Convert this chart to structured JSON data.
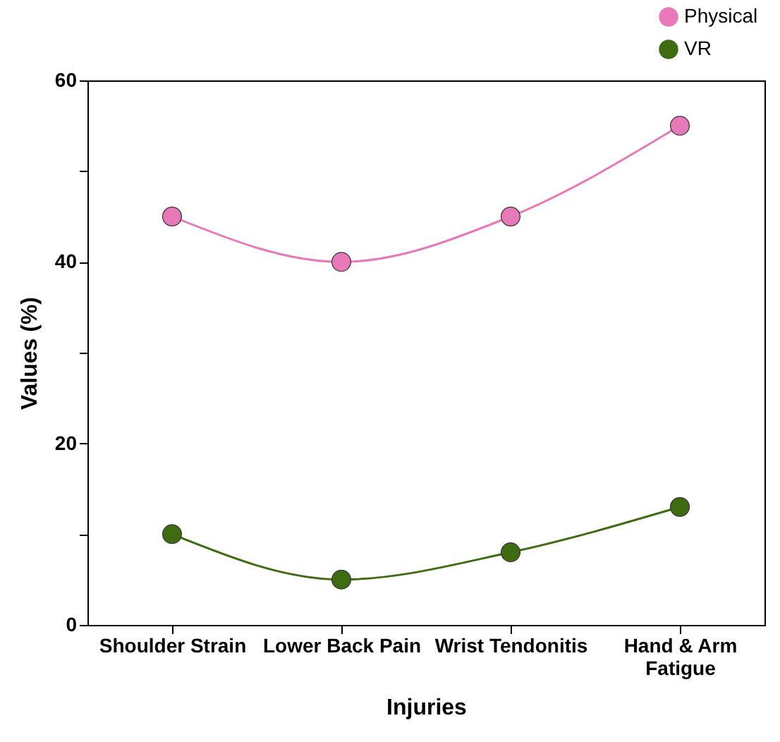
{
  "chart_data": {
    "type": "line",
    "xlabel": "Injuries",
    "ylabel": "Values (%)",
    "categories": [
      "Shoulder Strain",
      "Lower Back Pain",
      "Wrist Tendonitis",
      "Hand & Arm Fatigue"
    ],
    "series": [
      {
        "name": "Physical",
        "color": "#e879b9",
        "values": [
          45,
          40,
          45,
          55
        ]
      },
      {
        "name": "VR",
        "color": "#3f6b12",
        "values": [
          10,
          5,
          8,
          13
        ]
      }
    ],
    "ylim": [
      0,
      60
    ],
    "yticks": [
      0,
      {
        "value": 10,
        "label": null
      },
      20,
      {
        "value": 30,
        "label": null
      },
      40,
      {
        "value": 50,
        "label": null
      },
      60
    ],
    "grid": false,
    "legend": "top right",
    "marker": "circle",
    "line_style": "solid"
  }
}
